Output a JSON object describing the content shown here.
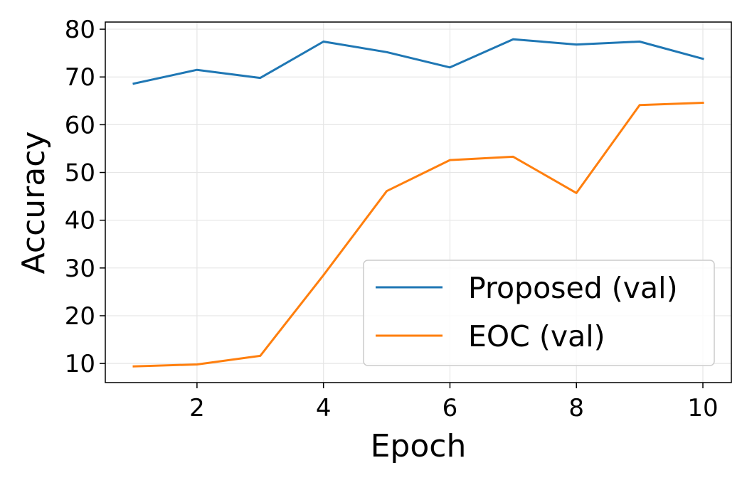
{
  "chart_data": {
    "type": "line",
    "xlabel": "Epoch",
    "ylabel": "Accuracy",
    "xlim": [
      0.55,
      10.45
    ],
    "ylim": [
      6.0,
      81.5
    ],
    "xticks": [
      2,
      4,
      6,
      8,
      10
    ],
    "yticks": [
      10,
      20,
      30,
      40,
      50,
      60,
      70,
      80
    ],
    "grid": true,
    "legend_position": "bottom-right",
    "x": [
      1,
      2,
      3,
      4,
      5,
      6,
      7,
      8,
      9,
      10
    ],
    "series": [
      {
        "name": "Proposed (val)",
        "color": "#1f77b4",
        "values": [
          68.6,
          71.5,
          69.8,
          77.4,
          75.2,
          72.0,
          77.9,
          76.8,
          77.4,
          73.8
        ]
      },
      {
        "name": "EOC (val)",
        "color": "#ff7f0e",
        "values": [
          9.4,
          9.8,
          11.6,
          28.5,
          46.1,
          52.6,
          53.3,
          45.7,
          64.1,
          64.6
        ]
      }
    ]
  }
}
